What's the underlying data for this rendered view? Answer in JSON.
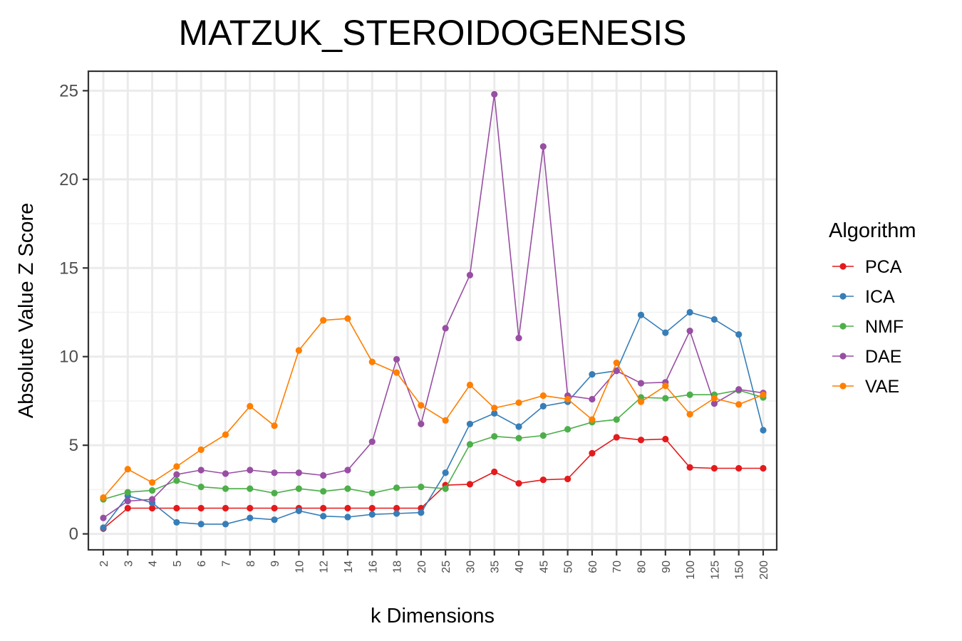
{
  "chart_data": {
    "type": "line",
    "title": "MATZUK_STEROIDOGENESIS",
    "xlabel": "k Dimensions",
    "ylabel": "Absolute Value Z Score",
    "categories": [
      "2",
      "3",
      "4",
      "5",
      "6",
      "7",
      "8",
      "9",
      "10",
      "12",
      "14",
      "16",
      "18",
      "20",
      "25",
      "30",
      "35",
      "40",
      "45",
      "50",
      "60",
      "70",
      "80",
      "90",
      "100",
      "125",
      "150",
      "200"
    ],
    "yticks": [
      "0",
      "5",
      "10",
      "15",
      "20",
      "25"
    ],
    "ylim": [
      -0.9,
      26.1
    ],
    "grid": true,
    "legend": {
      "title": "Algorithm",
      "position": "right"
    },
    "series": [
      {
        "name": "PCA",
        "color": "#e41a1c",
        "values": [
          0.3,
          1.45,
          1.45,
          1.45,
          1.45,
          1.45,
          1.45,
          1.45,
          1.45,
          1.45,
          1.45,
          1.45,
          1.45,
          1.45,
          2.75,
          2.8,
          3.5,
          2.85,
          3.05,
          3.1,
          4.55,
          5.45,
          5.3,
          5.35,
          3.75,
          3.7,
          3.7,
          3.7
        ]
      },
      {
        "name": "ICA",
        "color": "#377eb8",
        "values": [
          0.35,
          2.15,
          1.75,
          0.65,
          0.55,
          0.55,
          0.9,
          0.8,
          1.3,
          1.0,
          0.95,
          1.1,
          1.15,
          1.2,
          3.45,
          6.2,
          6.8,
          6.05,
          7.2,
          7.45,
          9.0,
          9.2,
          12.35,
          11.35,
          12.5,
          12.1,
          11.25,
          5.85
        ]
      },
      {
        "name": "NMF",
        "color": "#4daf4a",
        "values": [
          1.95,
          2.35,
          2.45,
          3.0,
          2.65,
          2.55,
          2.55,
          2.3,
          2.55,
          2.4,
          2.55,
          2.3,
          2.6,
          2.65,
          2.55,
          5.05,
          5.5,
          5.4,
          5.55,
          5.9,
          6.3,
          6.45,
          7.7,
          7.65,
          7.85,
          7.85,
          8.1,
          7.7
        ]
      },
      {
        "name": "DAE",
        "color": "#984ea3",
        "values": [
          0.9,
          1.85,
          1.95,
          3.35,
          3.6,
          3.4,
          3.6,
          3.45,
          3.45,
          3.3,
          3.6,
          5.2,
          9.85,
          6.2,
          11.6,
          14.6,
          24.8,
          11.05,
          21.85,
          7.8,
          7.6,
          9.2,
          8.5,
          8.55,
          11.45,
          7.35,
          8.15,
          7.95
        ]
      },
      {
        "name": "VAE",
        "color": "#ff7f00",
        "values": [
          2.05,
          3.65,
          2.9,
          3.8,
          4.75,
          5.6,
          7.2,
          6.1,
          10.35,
          12.05,
          12.15,
          9.7,
          9.1,
          7.25,
          6.4,
          8.4,
          7.1,
          7.4,
          7.8,
          7.6,
          6.45,
          9.65,
          7.45,
          8.35,
          6.75,
          7.65,
          7.3,
          7.85
        ]
      }
    ]
  }
}
